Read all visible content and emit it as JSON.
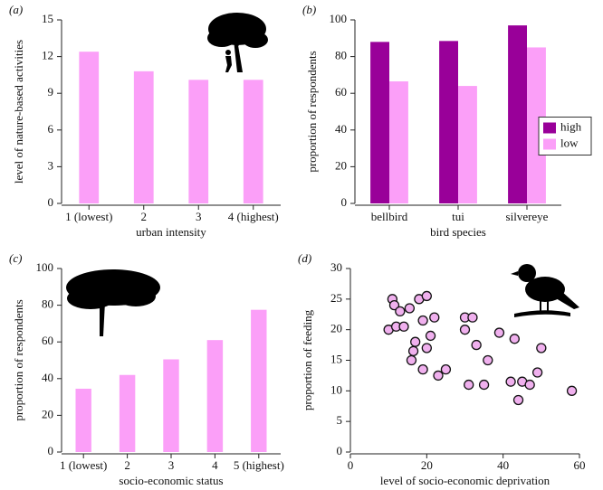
{
  "chart_data": [
    {
      "type": "bar",
      "panel": "(a)",
      "xlabel": "urban intensity",
      "ylabel": "level of nature-based activities",
      "categories": [
        "1 (lowest)",
        "2",
        "3",
        "4 (highest)"
      ],
      "values": [
        12.4,
        10.8,
        10.1,
        10.1
      ],
      "color": "#fb9ff8",
      "ylim": [
        0,
        15
      ],
      "yticks": [
        0,
        3,
        6,
        9,
        12,
        15
      ]
    },
    {
      "type": "bar",
      "panel": "(b)",
      "xlabel": "bird species",
      "ylabel": "proportion of respondents",
      "categories": [
        "bellbird",
        "tui",
        "silvereye"
      ],
      "series": [
        {
          "name": "high",
          "color": "#990099",
          "values": [
            88,
            88.5,
            97
          ]
        },
        {
          "name": "low",
          "color": "#fb9ff8",
          "values": [
            66.5,
            64,
            85
          ]
        }
      ],
      "ylim": [
        0,
        100
      ],
      "yticks": [
        0,
        20,
        40,
        60,
        80,
        100
      ],
      "legend": "right"
    },
    {
      "type": "bar",
      "panel": "(c)",
      "xlabel": "socio-economic status",
      "ylabel": "proportion of respondents",
      "categories": [
        "1 (lowest)",
        "2",
        "3",
        "4",
        "5 (highest)"
      ],
      "values": [
        34.5,
        42,
        50.5,
        61,
        77.5
      ],
      "color": "#fb9ff8",
      "ylim": [
        0,
        100
      ],
      "yticks": [
        0,
        20,
        40,
        60,
        80,
        100
      ]
    },
    {
      "type": "scatter",
      "panel": "(d)",
      "xlabel": "level of socio-economic deprivation",
      "ylabel": "proportion of feeding",
      "x": [
        10,
        11,
        11.5,
        12,
        13,
        14,
        15.5,
        16,
        16.5,
        17,
        18,
        19,
        19,
        20,
        20,
        21,
        22,
        23,
        25,
        30,
        30,
        31,
        32,
        33,
        35,
        36,
        39,
        42,
        43,
        44,
        45,
        47,
        49,
        50,
        58
      ],
      "values": [
        20,
        25,
        24,
        20.5,
        23,
        20.5,
        23.5,
        15,
        16.5,
        18,
        25,
        13.5,
        21.5,
        25.5,
        17,
        19,
        22,
        12.5,
        13.5,
        22,
        20,
        11,
        22,
        17.5,
        11,
        15,
        19.5,
        11.5,
        18.5,
        8.5,
        11.5,
        11,
        13,
        17,
        10
      ],
      "color": "#f0b0ee",
      "xlim": [
        0,
        60
      ],
      "xticks": [
        0,
        20,
        40,
        60
      ],
      "ylim": [
        0,
        30
      ],
      "yticks": [
        0,
        5,
        10,
        15,
        20,
        25,
        30
      ]
    }
  ]
}
